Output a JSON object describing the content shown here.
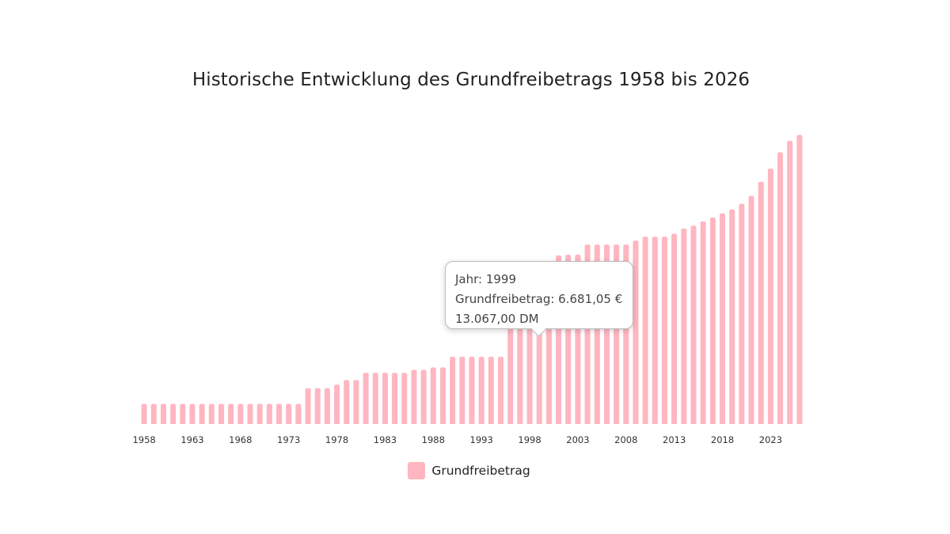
{
  "chart_data": {
    "type": "bar",
    "title": "Historische Entwicklung des Grundfreibetrags 1958 bis 2026",
    "xlabel": "",
    "ylabel": "",
    "ylim": [
      0,
      12500
    ],
    "grid": false,
    "legend_position": "bottom-center",
    "x_tick_labels": [
      "1958",
      "1963",
      "1968",
      "1973",
      "1978",
      "1983",
      "1988",
      "1993",
      "1998",
      "2003",
      "2008",
      "2013",
      "2018",
      "2023"
    ],
    "categories": [
      1958,
      1959,
      1960,
      1961,
      1962,
      1963,
      1964,
      1965,
      1966,
      1967,
      1968,
      1969,
      1970,
      1971,
      1972,
      1973,
      1974,
      1975,
      1976,
      1977,
      1978,
      1979,
      1980,
      1981,
      1982,
      1983,
      1984,
      1985,
      1986,
      1987,
      1988,
      1989,
      1990,
      1991,
      1992,
      1993,
      1994,
      1995,
      1996,
      1997,
      1998,
      1999,
      2000,
      2001,
      2002,
      2003,
      2004,
      2005,
      2006,
      2007,
      2008,
      2009,
      2010,
      2011,
      2012,
      2013,
      2014,
      2015,
      2016,
      2017,
      2018,
      2019,
      2020,
      2021,
      2022,
      2023,
      2024,
      2025,
      2026
    ],
    "series": [
      {
        "name": "Grundfreibetrag",
        "color": "#ffb6c1",
        "values": [
          861,
          861,
          861,
          861,
          861,
          861,
          861,
          861,
          861,
          861,
          861,
          861,
          861,
          861,
          861,
          861,
          861,
          1534,
          1534,
          1534,
          1687,
          1880,
          1880,
          2186,
          2186,
          2186,
          2186,
          2186,
          2315,
          2315,
          2420,
          2420,
          2874,
          2874,
          2874,
          2874,
          2874,
          2874,
          6184,
          6184,
          6322,
          6681,
          6902,
          7206,
          7235,
          7235,
          7664,
          7664,
          7664,
          7664,
          7664,
          7834,
          8004,
          8004,
          8004,
          8130,
          8354,
          8472,
          8652,
          8820,
          9000,
          9168,
          9408,
          9744,
          10347,
          10908,
          11604,
          12096,
          12348
        ]
      }
    ],
    "tooltip": {
      "line1": "Jahr: 1999",
      "line2": "Grundfreibetrag: 6.681,05 €",
      "line3": "13.067,00 DM"
    }
  }
}
